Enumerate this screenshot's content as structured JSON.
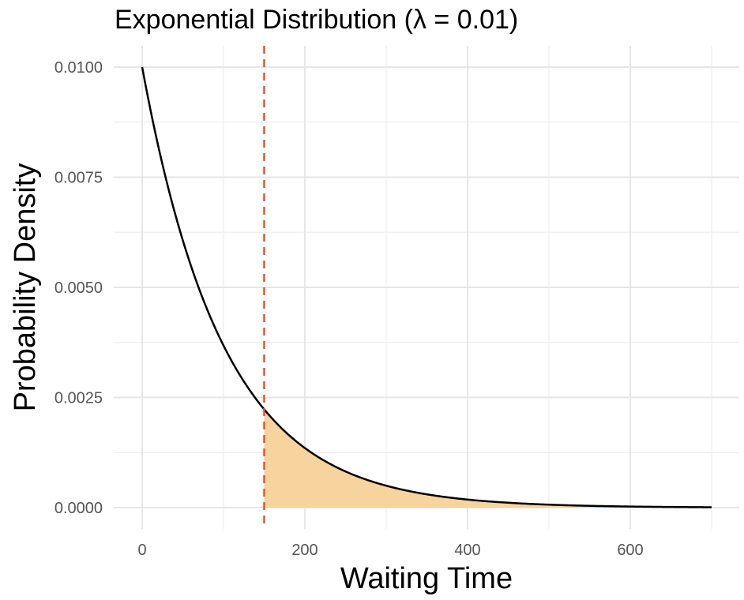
{
  "chart_data": {
    "type": "area",
    "title": "Exponential Distribution (λ = 0.01)",
    "xlabel": "Waiting Time",
    "ylabel": "Probability Density",
    "xlim": [
      0,
      700
    ],
    "ylim": [
      0,
      0.01
    ],
    "x_ticks": [
      0,
      200,
      400,
      600
    ],
    "x_tick_labels": [
      "0",
      "200",
      "400",
      "600"
    ],
    "y_ticks": [
      0,
      0.0025,
      0.005,
      0.0075,
      0.01
    ],
    "y_tick_labels": [
      "0.0000",
      "0.0025",
      "0.0050",
      "0.0075",
      "0.0100"
    ],
    "grid": true,
    "legend": "none",
    "density_curve": {
      "function": "exponential pdf",
      "rate": 0.01,
      "x_range": [
        0,
        700
      ],
      "color": "#000000"
    },
    "shaded_region": {
      "x_from": 150,
      "x_to": 700,
      "color": "#f7d39e"
    },
    "reference_line": {
      "x": 150,
      "style": "dashed",
      "color": "#e8552a"
    }
  }
}
